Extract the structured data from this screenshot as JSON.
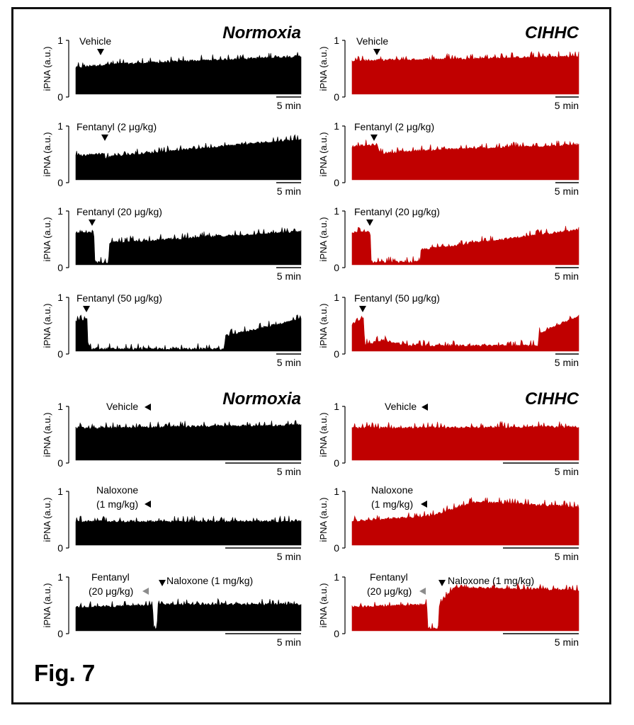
{
  "figure": {
    "label": "Fig. 7"
  },
  "colors": {
    "normoxia": "#000000",
    "cihhc": "#c00000",
    "naloxone_arrow_gray": "#8c8c8c"
  },
  "chart_data": [
    {
      "id": "top-normoxia-vehicle",
      "type": "line",
      "group": "Normoxia",
      "title": "Normoxia",
      "ylabel": "iPNA (a.u.)",
      "ylim": [
        0,
        1
      ],
      "yticks": [
        "0",
        "1"
      ],
      "scalebar": "5 min",
      "annotation": "Vehicle",
      "injection_time_fraction": 0.12,
      "series": [
        {
          "name": "iPNA",
          "segments": [
            [
              0,
              0.5,
              0.5
            ],
            [
              0.12,
              0.55,
              0.55
            ],
            [
              1,
              0.7,
              0.7
            ]
          ]
        }
      ]
    },
    {
      "id": "top-cihhc-vehicle",
      "type": "line",
      "group": "CIHHC",
      "title": "CIHHC",
      "ylabel": "iPNA (a.u.)",
      "ylim": [
        0,
        1
      ],
      "yticks": [
        "0",
        "1"
      ],
      "scalebar": "5 min",
      "annotation": "Vehicle",
      "injection_time_fraction": 0.11,
      "series": [
        {
          "name": "iPNA",
          "segments": [
            [
              0,
              0.62,
              0.62
            ],
            [
              1,
              0.7,
              0.7
            ]
          ]
        }
      ]
    },
    {
      "id": "top-normoxia-fent2",
      "type": "line",
      "group": "Normoxia",
      "ylabel": "iPNA (a.u.)",
      "ylim": [
        0,
        1
      ],
      "yticks": [
        "0",
        "1"
      ],
      "scalebar": "5 min",
      "annotation": "Fentanyl (2 μg/kg)",
      "injection_time_fraction": 0.13,
      "series": [
        {
          "name": "iPNA",
          "segments": [
            [
              0,
              0.45,
              0.45
            ],
            [
              0.13,
              0.5,
              0.4
            ],
            [
              0.16,
              0.45,
              0.45
            ],
            [
              1,
              0.75,
              0.75
            ]
          ]
        }
      ]
    },
    {
      "id": "top-cihhc-fent2",
      "type": "line",
      "group": "CIHHC",
      "ylabel": "iPNA (a.u.)",
      "ylim": [
        0,
        1
      ],
      "yticks": [
        "0",
        "1"
      ],
      "scalebar": "5 min",
      "annotation": "Fentanyl (2 μg/kg)",
      "injection_time_fraction": 0.1,
      "series": [
        {
          "name": "iPNA",
          "segments": [
            [
              0,
              0.62,
              0.62
            ],
            [
              0.1,
              0.65,
              0.65
            ],
            [
              0.13,
              0.5,
              0.5
            ],
            [
              0.3,
              0.55,
              0.55
            ],
            [
              1,
              0.65,
              0.65
            ]
          ]
        }
      ]
    },
    {
      "id": "top-normoxia-fent20",
      "type": "line",
      "group": "Normoxia",
      "ylabel": "iPNA (a.u.)",
      "ylim": [
        0,
        1
      ],
      "yticks": [
        "0",
        "1"
      ],
      "scalebar": "5 min",
      "annotation": "Fentanyl (20 μg/kg)",
      "injection_time_fraction": 0.08,
      "series": [
        {
          "name": "iPNA",
          "segments": [
            [
              0,
              0.58,
              0.58
            ],
            [
              0.08,
              0.6,
              0.6
            ],
            [
              0.085,
              0.07,
              0.07
            ],
            [
              0.145,
              0.07,
              0.07
            ],
            [
              0.15,
              0.42,
              0.42
            ],
            [
              1,
              0.62,
              0.62
            ]
          ]
        }
      ]
    },
    {
      "id": "top-cihhc-fent20",
      "type": "line",
      "group": "CIHHC",
      "ylabel": "iPNA (a.u.)",
      "ylim": [
        0,
        1
      ],
      "yticks": [
        "0",
        "1"
      ],
      "scalebar": "5 min",
      "annotation": "Fentanyl (20 μg/kg)",
      "injection_time_fraction": 0.08,
      "series": [
        {
          "name": "iPNA",
          "segments": [
            [
              0,
              0.6,
              0.6
            ],
            [
              0.08,
              0.62,
              0.62
            ],
            [
              0.085,
              0.08,
              0.08
            ],
            [
              0.3,
              0.08,
              0.08
            ],
            [
              0.305,
              0.3,
              0.3
            ],
            [
              1,
              0.65,
              0.65
            ]
          ]
        }
      ]
    },
    {
      "id": "top-normoxia-fent50",
      "type": "line",
      "group": "Normoxia",
      "ylabel": "iPNA (a.u.)",
      "ylim": [
        0,
        1
      ],
      "yticks": [
        "0",
        "1"
      ],
      "scalebar": "5 min",
      "annotation": "Fentanyl (50 μg/kg)",
      "injection_time_fraction": 0.05,
      "series": [
        {
          "name": "iPNA",
          "segments": [
            [
              0,
              0.55,
              0.55
            ],
            [
              0.05,
              0.6,
              0.6
            ],
            [
              0.055,
              0.07,
              0.07
            ],
            [
              0.66,
              0.07,
              0.07
            ],
            [
              0.665,
              0.3,
              0.3
            ],
            [
              1,
              0.6,
              0.6
            ]
          ]
        }
      ]
    },
    {
      "id": "top-cihhc-fent50",
      "type": "line",
      "group": "CIHHC",
      "ylabel": "iPNA (a.u.)",
      "ylim": [
        0,
        1
      ],
      "yticks": [
        "0",
        "1"
      ],
      "scalebar": "5 min",
      "annotation": "Fentanyl (50 μg/kg)",
      "injection_time_fraction": 0.05,
      "series": [
        {
          "name": "iPNA",
          "segments": [
            [
              0,
              0.5,
              0.5
            ],
            [
              0.05,
              0.62,
              0.62
            ],
            [
              0.055,
              0.15,
              0.15
            ],
            [
              0.14,
              0.22,
              0.22
            ],
            [
              0.25,
              0.13,
              0.13
            ],
            [
              0.82,
              0.13,
              0.13
            ],
            [
              0.825,
              0.35,
              0.35
            ],
            [
              1,
              0.65,
              0.65
            ]
          ]
        }
      ]
    },
    {
      "id": "bottom-normoxia-vehicle",
      "type": "line",
      "group": "Normoxia",
      "title": "Normoxia",
      "ylabel": "iPNA (a.u.)",
      "ylim": [
        0,
        1
      ],
      "yticks": [
        "0",
        "1"
      ],
      "scalebar": "5 min",
      "annotation": "Vehicle",
      "injection_time_fraction": 0.35,
      "series": [
        {
          "name": "iPNA",
          "segments": [
            [
              0,
              0.6,
              0.6
            ],
            [
              1,
              0.65,
              0.65
            ]
          ]
        }
      ]
    },
    {
      "id": "bottom-cihhc-vehicle",
      "type": "line",
      "group": "CIHHC",
      "title": "CIHHC",
      "ylabel": "iPNA (a.u.)",
      "ylim": [
        0,
        1
      ],
      "yticks": [
        "0",
        "1"
      ],
      "scalebar": "5 min",
      "annotation": "Vehicle",
      "injection_time_fraction": 0.33,
      "series": [
        {
          "name": "iPNA",
          "segments": [
            [
              0,
              0.6,
              0.6
            ],
            [
              1,
              0.62,
              0.62
            ]
          ]
        }
      ]
    },
    {
      "id": "bottom-normoxia-naloxone",
      "type": "line",
      "group": "Normoxia",
      "ylabel": "iPNA (a.u.)",
      "ylim": [
        0,
        1
      ],
      "yticks": [
        "0",
        "1"
      ],
      "scalebar": "5 min",
      "annotation_lines": [
        "Naloxone",
        "(1 mg/kg)"
      ],
      "injection_time_fraction": 0.35,
      "series": [
        {
          "name": "iPNA",
          "segments": [
            [
              0,
              0.45,
              0.45
            ],
            [
              1,
              0.45,
              0.45
            ]
          ]
        }
      ]
    },
    {
      "id": "bottom-cihhc-naloxone",
      "type": "line",
      "group": "CIHHC",
      "ylabel": "iPNA (a.u.)",
      "ylim": [
        0,
        1
      ],
      "yticks": [
        "0",
        "1"
      ],
      "scalebar": "5 min",
      "annotation_lines": [
        "Naloxone",
        "(1 mg/kg)"
      ],
      "injection_time_fraction": 0.33,
      "series": [
        {
          "name": "iPNA",
          "segments": [
            [
              0,
              0.45,
              0.45
            ],
            [
              0.35,
              0.55,
              0.55
            ],
            [
              0.55,
              0.8,
              0.8
            ],
            [
              1,
              0.7,
              0.7
            ]
          ]
        }
      ]
    },
    {
      "id": "bottom-normoxia-fent-nal",
      "type": "line",
      "group": "Normoxia",
      "ylabel": "iPNA (a.u.)",
      "ylim": [
        0,
        1
      ],
      "yticks": [
        "0",
        "1"
      ],
      "scalebar": "5 min",
      "annotation_lines": [
        "Fentanyl",
        "(20 μg/kg)"
      ],
      "annotation2": "Naloxone (1 mg/kg)",
      "injection_time_fraction": 0.34,
      "second_injection_time_fraction": 0.37,
      "series": [
        {
          "name": "iPNA",
          "segments": [
            [
              0,
              0.45,
              0.45
            ],
            [
              0.34,
              0.48,
              0.48
            ],
            [
              0.345,
              0.07,
              0.07
            ],
            [
              0.36,
              0.07,
              0.07
            ],
            [
              0.365,
              0.5,
              0.5
            ],
            [
              1,
              0.5,
              0.5
            ]
          ]
        }
      ]
    },
    {
      "id": "bottom-cihhc-fent-nal",
      "type": "line",
      "group": "CIHHC",
      "ylabel": "iPNA (a.u.)",
      "ylim": [
        0,
        1
      ],
      "yticks": [
        "0",
        "1"
      ],
      "scalebar": "5 min",
      "annotation_lines": [
        "Fentanyl",
        "(20 μg/kg)"
      ],
      "annotation2": "Naloxone (1 mg/kg)",
      "injection_time_fraction": 0.33,
      "second_injection_time_fraction": 0.38,
      "series": [
        {
          "name": "iPNA",
          "segments": [
            [
              0,
              0.45,
              0.45
            ],
            [
              0.33,
              0.5,
              0.5
            ],
            [
              0.335,
              0.07,
              0.07
            ],
            [
              0.38,
              0.07,
              0.07
            ],
            [
              0.385,
              0.5,
              0.5
            ],
            [
              0.45,
              0.8,
              0.8
            ],
            [
              1,
              0.75,
              0.75
            ]
          ]
        }
      ]
    }
  ]
}
